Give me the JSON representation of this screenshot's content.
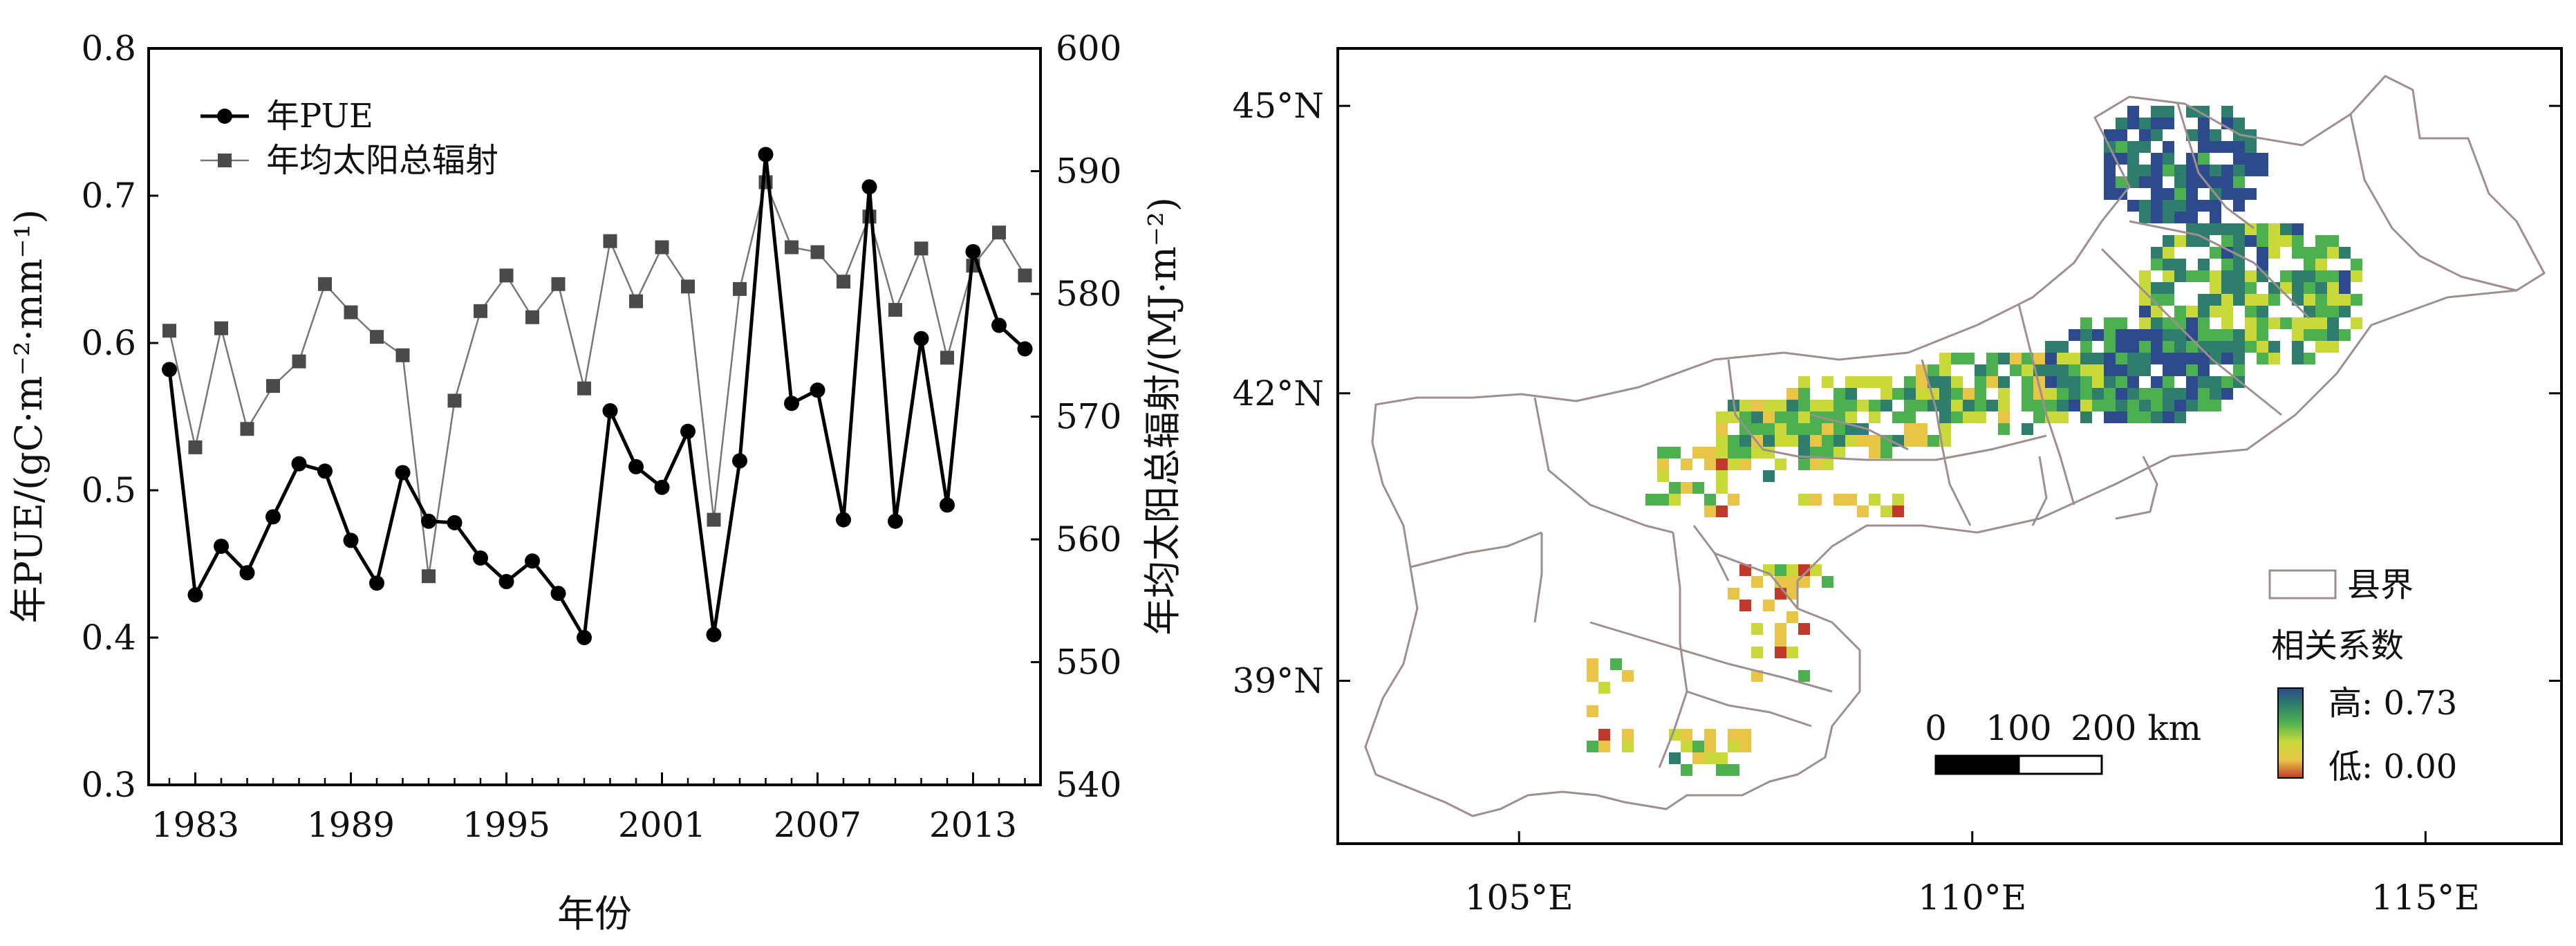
{
  "chart_data": [
    {
      "type": "line",
      "title": "",
      "xlabel": "年份",
      "ylabel": "年PUE/(gC·m⁻²·mm⁻¹)",
      "ylabel_right": "年均太阳总辐射/(MJ·m⁻²)",
      "x": [
        1982,
        1983,
        1984,
        1985,
        1986,
        1987,
        1988,
        1989,
        1990,
        1991,
        1992,
        1993,
        1994,
        1995,
        1996,
        1997,
        1998,
        1999,
        2000,
        2001,
        2002,
        2003,
        2004,
        2005,
        2006,
        2007,
        2008,
        2009,
        2010,
        2011,
        2012,
        2013,
        2014,
        2015
      ],
      "xticks": [
        "1983",
        "1989",
        "1995",
        "2001",
        "2007",
        "2013"
      ],
      "xlim": [
        1981.2,
        2015.6
      ],
      "ylim": [
        0.3,
        0.8
      ],
      "yticks": [
        "0.3",
        "0.4",
        "0.5",
        "0.6",
        "0.7",
        "0.8"
      ],
      "ylim_right": [
        540,
        600
      ],
      "yticks_right": [
        "540",
        "550",
        "560",
        "570",
        "580",
        "590",
        "600"
      ],
      "grid": false,
      "legend": "top-left",
      "series": [
        {
          "name": "年PUE",
          "axis": "left",
          "marker": "circle",
          "color": "#000000",
          "values": [
            0.582,
            0.429,
            0.462,
            0.444,
            0.482,
            0.518,
            0.513,
            0.466,
            0.437,
            0.512,
            0.479,
            0.478,
            0.454,
            0.438,
            0.452,
            0.43,
            0.4,
            0.554,
            0.516,
            0.502,
            0.54,
            0.402,
            0.52,
            0.728,
            0.559,
            0.568,
            0.48,
            0.706,
            0.479,
            0.603,
            0.49,
            0.662,
            0.612,
            0.596
          ]
        },
        {
          "name": "年均太阳总辐射",
          "axis": "right",
          "marker": "square",
          "color": "#4a4a4a",
          "values": [
            577,
            567.5,
            577.2,
            569,
            572.5,
            574.5,
            580.8,
            578.5,
            576.5,
            575,
            557,
            571.3,
            578.6,
            581.5,
            578.1,
            580.8,
            572.3,
            584.3,
            579.4,
            583.8,
            580.6,
            561.6,
            580.4,
            589.1,
            583.8,
            583.4,
            581,
            586.3,
            578.7,
            583.7,
            574.8,
            582.3,
            585,
            581.5
          ]
        }
      ]
    },
    {
      "type": "heatmap",
      "title": "",
      "xticks": [
        "105°E",
        "110°E",
        "115°E"
      ],
      "yticks": [
        "39°N",
        "42°N",
        "45°N"
      ],
      "xlim": [
        103.0,
        116.5
      ],
      "ylim": [
        37.3,
        45.6
      ],
      "legend_boundary_label": "县界",
      "colorbar_title": "相关系数",
      "colorbar_high_label": "高",
      "colorbar_high_value": ": 0.73",
      "colorbar_low_label": "低",
      "colorbar_low_value": ": 0.00",
      "colorbar_range": [
        0.0,
        0.73
      ],
      "colorbar_colors": [
        "#c0392b",
        "#e8c547",
        "#c9d93a",
        "#4caf50",
        "#2f7d6d",
        "#2c4a8c"
      ],
      "scalebar_labels": [
        "0",
        "100",
        "200 km"
      ],
      "boundary_color": "#9e8f8f"
    }
  ]
}
